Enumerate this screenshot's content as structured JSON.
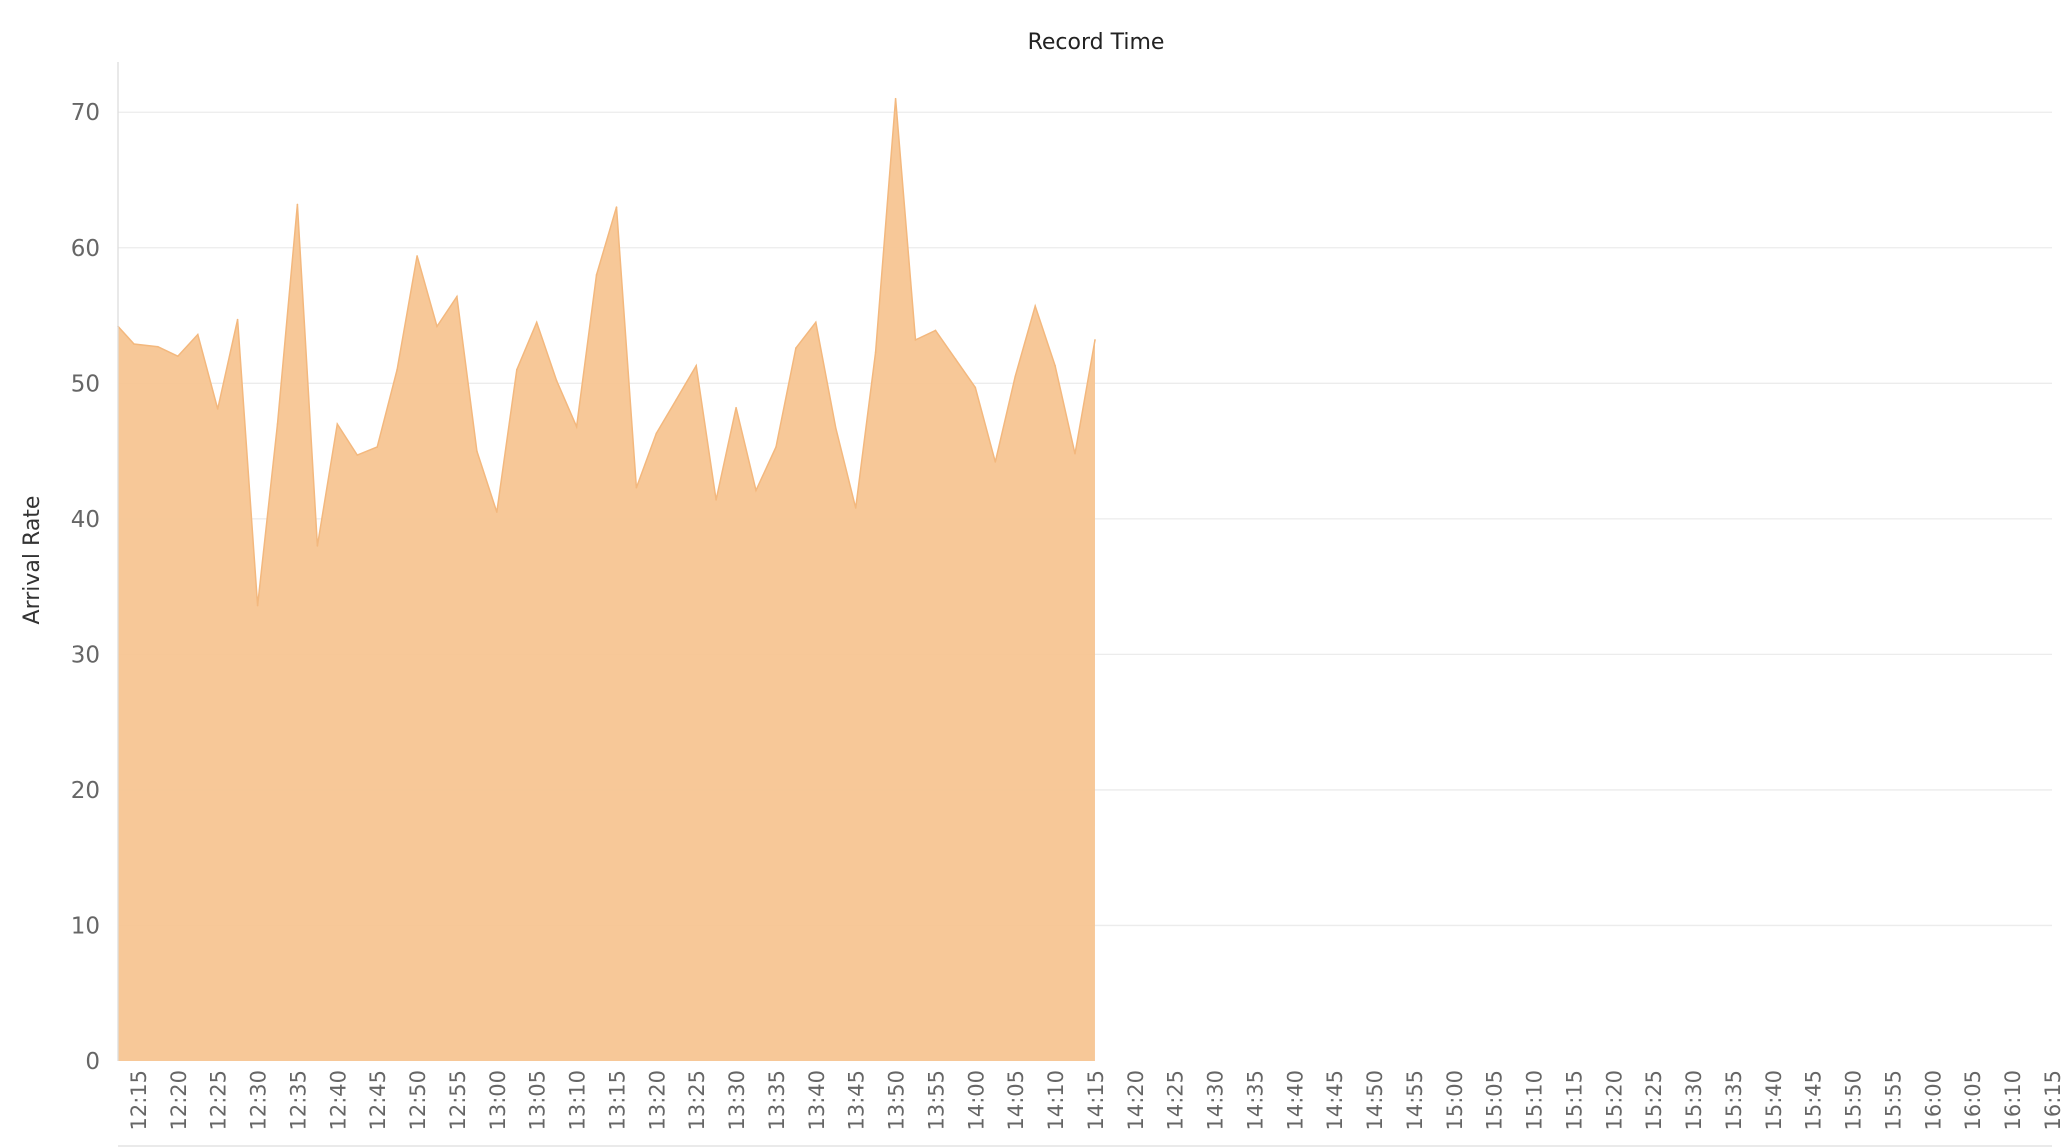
{
  "chart_data": {
    "type": "area",
    "title": "Record Time",
    "xlabel": "",
    "ylabel": "Arrival Rate",
    "ylim": [
      0,
      74
    ],
    "yticks": [
      0,
      10,
      20,
      30,
      40,
      50,
      60,
      70
    ],
    "grid": true,
    "legend": "none",
    "color": "#F7C592",
    "x": [
      "12:15",
      "12:20",
      "12:25",
      "12:30",
      "12:35",
      "12:40",
      "12:45",
      "12:50",
      "12:55",
      "13:00",
      "13:05",
      "13:10",
      "13:15",
      "13:20",
      "13:25",
      "13:30",
      "13:35",
      "13:40",
      "13:45",
      "13:50",
      "13:55",
      "14:00",
      "14:05",
      "14:10",
      "14:15",
      "14:20",
      "14:25",
      "14:30",
      "14:35",
      "14:40",
      "14:45",
      "14:50",
      "14:55",
      "15:00",
      "15:05",
      "15:10",
      "15:15",
      "15:20",
      "15:25",
      "15:30",
      "15:35",
      "15:40",
      "15:45",
      "15:50",
      "15:55",
      "16:00",
      "16:05",
      "16:10",
      "16:15"
    ],
    "series": [
      {
        "points": [
          [
            0,
            54.2
          ],
          [
            0.4,
            52.9
          ],
          [
            1.0,
            52.7
          ],
          [
            1.5,
            52.0
          ],
          [
            2.0,
            53.6
          ],
          [
            2.5,
            48.1
          ],
          [
            3.0,
            54.7
          ],
          [
            3.5,
            33.6
          ],
          [
            4.0,
            47.0
          ],
          [
            4.5,
            63.2
          ],
          [
            5.0,
            38.0
          ],
          [
            5.5,
            47.0
          ],
          [
            6.0,
            44.7
          ],
          [
            6.5,
            45.3
          ],
          [
            7.0,
            51.0
          ],
          [
            7.5,
            59.4
          ],
          [
            8.0,
            54.2
          ],
          [
            8.5,
            56.4
          ],
          [
            9.0,
            45.0
          ],
          [
            9.5,
            40.5
          ],
          [
            10.0,
            51.0
          ],
          [
            10.5,
            54.5
          ],
          [
            11.0,
            50.2
          ],
          [
            11.5,
            46.8
          ],
          [
            12.0,
            58.0
          ],
          [
            12.5,
            63.0
          ],
          [
            13.0,
            42.3
          ],
          [
            13.5,
            46.3
          ],
          [
            14.0,
            48.8
          ],
          [
            14.5,
            51.3
          ],
          [
            15.0,
            41.4
          ],
          [
            15.5,
            48.2
          ],
          [
            16.0,
            42.1
          ],
          [
            16.5,
            45.3
          ],
          [
            17.0,
            52.6
          ],
          [
            17.5,
            54.5
          ],
          [
            18.0,
            46.7
          ],
          [
            18.5,
            40.8
          ],
          [
            19.0,
            52.3
          ],
          [
            19.5,
            71.0
          ],
          [
            20.0,
            53.2
          ],
          [
            20.5,
            53.9
          ],
          [
            21.0,
            51.8
          ],
          [
            21.5,
            49.7
          ],
          [
            22.0,
            44.2
          ],
          [
            22.5,
            50.5
          ],
          [
            23.0,
            55.7
          ],
          [
            23.5,
            51.3
          ],
          [
            24.0,
            44.8
          ],
          [
            24.5,
            53.2
          ]
        ]
      }
    ]
  }
}
